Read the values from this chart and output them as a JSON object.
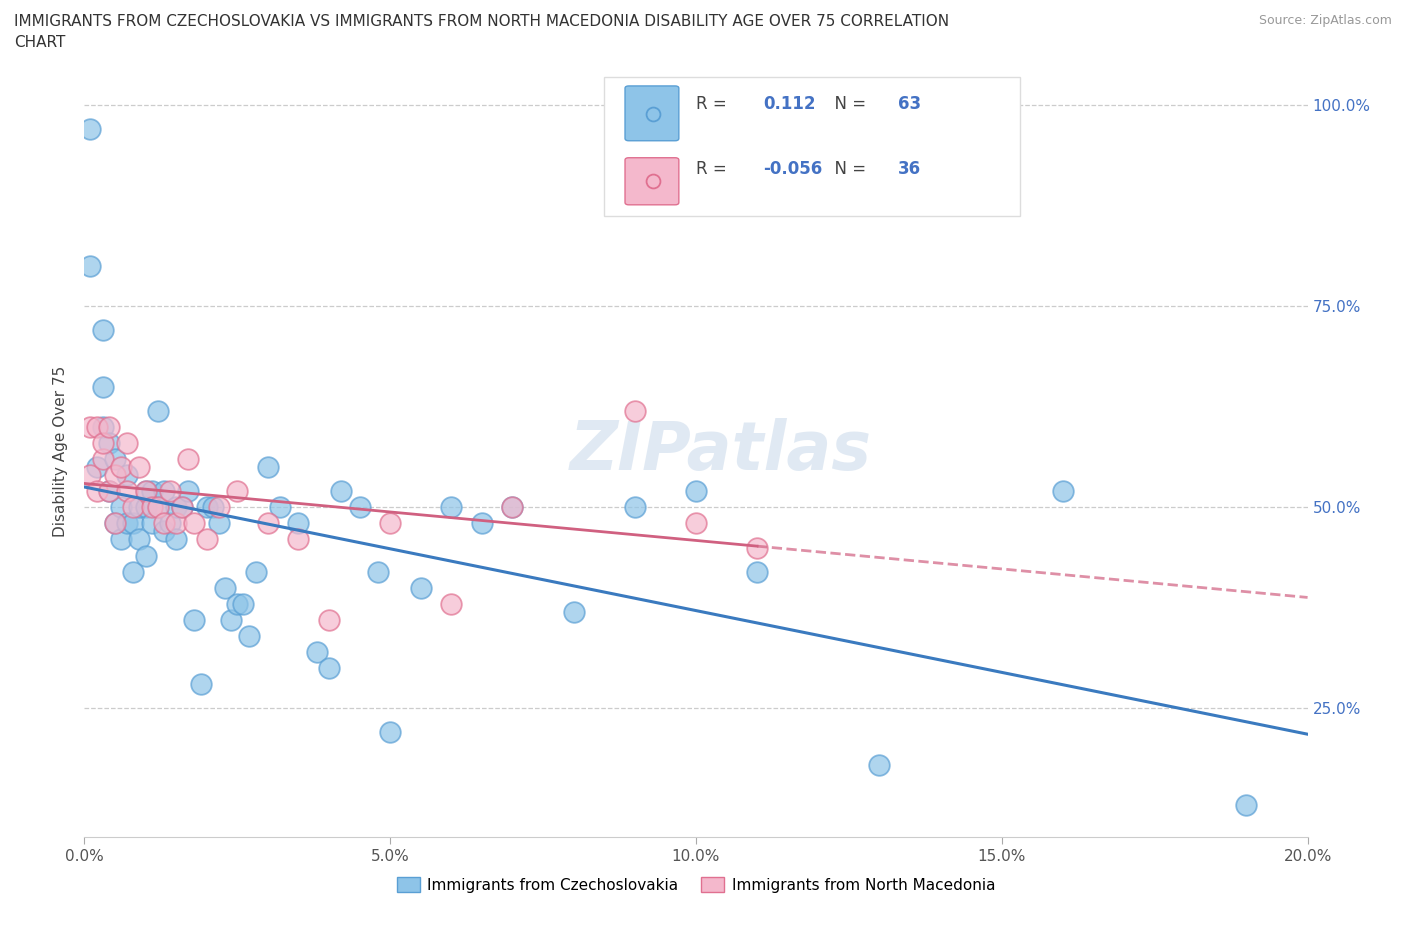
{
  "title_line1": "IMMIGRANTS FROM CZECHOSLOVAKIA VS IMMIGRANTS FROM NORTH MACEDONIA DISABILITY AGE OVER 75 CORRELATION",
  "title_line2": "CHART",
  "source": "Source: ZipAtlas.com",
  "ylabel": "Disability Age Over 75",
  "xlim": [
    0.0,
    0.2
  ],
  "ylim": [
    0.09,
    1.05
  ],
  "xticks": [
    0.0,
    0.05,
    0.1,
    0.15,
    0.2
  ],
  "yticks": [
    0.25,
    0.5,
    0.75,
    1.0
  ],
  "R_czech": 0.112,
  "N_czech": 63,
  "R_mac": -0.056,
  "N_mac": 36,
  "color_czech": "#8ec4e8",
  "color_mac": "#f4b8cc",
  "edge_czech": "#5a9fd4",
  "edge_mac": "#e07090",
  "line_color_czech": "#3a7abf",
  "line_color_mac": "#d06080",
  "watermark": "ZIPatlas",
  "legend_label_czech": "Immigrants from Czechoslovakia",
  "legend_label_mac": "Immigrants from North Macedonia",
  "czech_x": [
    0.001,
    0.001,
    0.002,
    0.003,
    0.003,
    0.003,
    0.004,
    0.004,
    0.005,
    0.005,
    0.006,
    0.006,
    0.007,
    0.007,
    0.008,
    0.008,
    0.009,
    0.009,
    0.01,
    0.01,
    0.01,
    0.011,
    0.011,
    0.012,
    0.012,
    0.013,
    0.013,
    0.014,
    0.015,
    0.015,
    0.016,
    0.017,
    0.018,
    0.019,
    0.02,
    0.021,
    0.022,
    0.023,
    0.024,
    0.025,
    0.026,
    0.027,
    0.028,
    0.03,
    0.032,
    0.035,
    0.038,
    0.04,
    0.042,
    0.045,
    0.048,
    0.05,
    0.055,
    0.06,
    0.065,
    0.07,
    0.08,
    0.09,
    0.1,
    0.11,
    0.13,
    0.16,
    0.19
  ],
  "czech_y": [
    0.97,
    0.8,
    0.55,
    0.72,
    0.65,
    0.6,
    0.52,
    0.58,
    0.48,
    0.56,
    0.46,
    0.5,
    0.48,
    0.54,
    0.48,
    0.42,
    0.5,
    0.46,
    0.52,
    0.5,
    0.44,
    0.48,
    0.52,
    0.62,
    0.5,
    0.52,
    0.47,
    0.48,
    0.5,
    0.46,
    0.5,
    0.52,
    0.36,
    0.28,
    0.5,
    0.5,
    0.48,
    0.4,
    0.36,
    0.38,
    0.38,
    0.34,
    0.42,
    0.55,
    0.5,
    0.48,
    0.32,
    0.3,
    0.52,
    0.5,
    0.42,
    0.22,
    0.4,
    0.5,
    0.48,
    0.5,
    0.37,
    0.5,
    0.52,
    0.42,
    0.18,
    0.52,
    0.13
  ],
  "mac_x": [
    0.001,
    0.001,
    0.002,
    0.002,
    0.003,
    0.003,
    0.004,
    0.004,
    0.005,
    0.005,
    0.006,
    0.007,
    0.007,
    0.008,
    0.009,
    0.01,
    0.011,
    0.012,
    0.013,
    0.014,
    0.015,
    0.016,
    0.017,
    0.018,
    0.02,
    0.022,
    0.025,
    0.03,
    0.035,
    0.04,
    0.05,
    0.06,
    0.07,
    0.09,
    0.1,
    0.11
  ],
  "mac_y": [
    0.6,
    0.54,
    0.6,
    0.52,
    0.56,
    0.58,
    0.6,
    0.52,
    0.54,
    0.48,
    0.55,
    0.52,
    0.58,
    0.5,
    0.55,
    0.52,
    0.5,
    0.5,
    0.48,
    0.52,
    0.48,
    0.5,
    0.56,
    0.48,
    0.46,
    0.5,
    0.52,
    0.48,
    0.46,
    0.36,
    0.48,
    0.38,
    0.5,
    0.62,
    0.48,
    0.45
  ],
  "tick_color": "#4472c4",
  "tick_fontsize": 11,
  "title_fontsize": 11,
  "source_fontsize": 9,
  "ylabel_fontsize": 11,
  "legend_fontsize": 11
}
